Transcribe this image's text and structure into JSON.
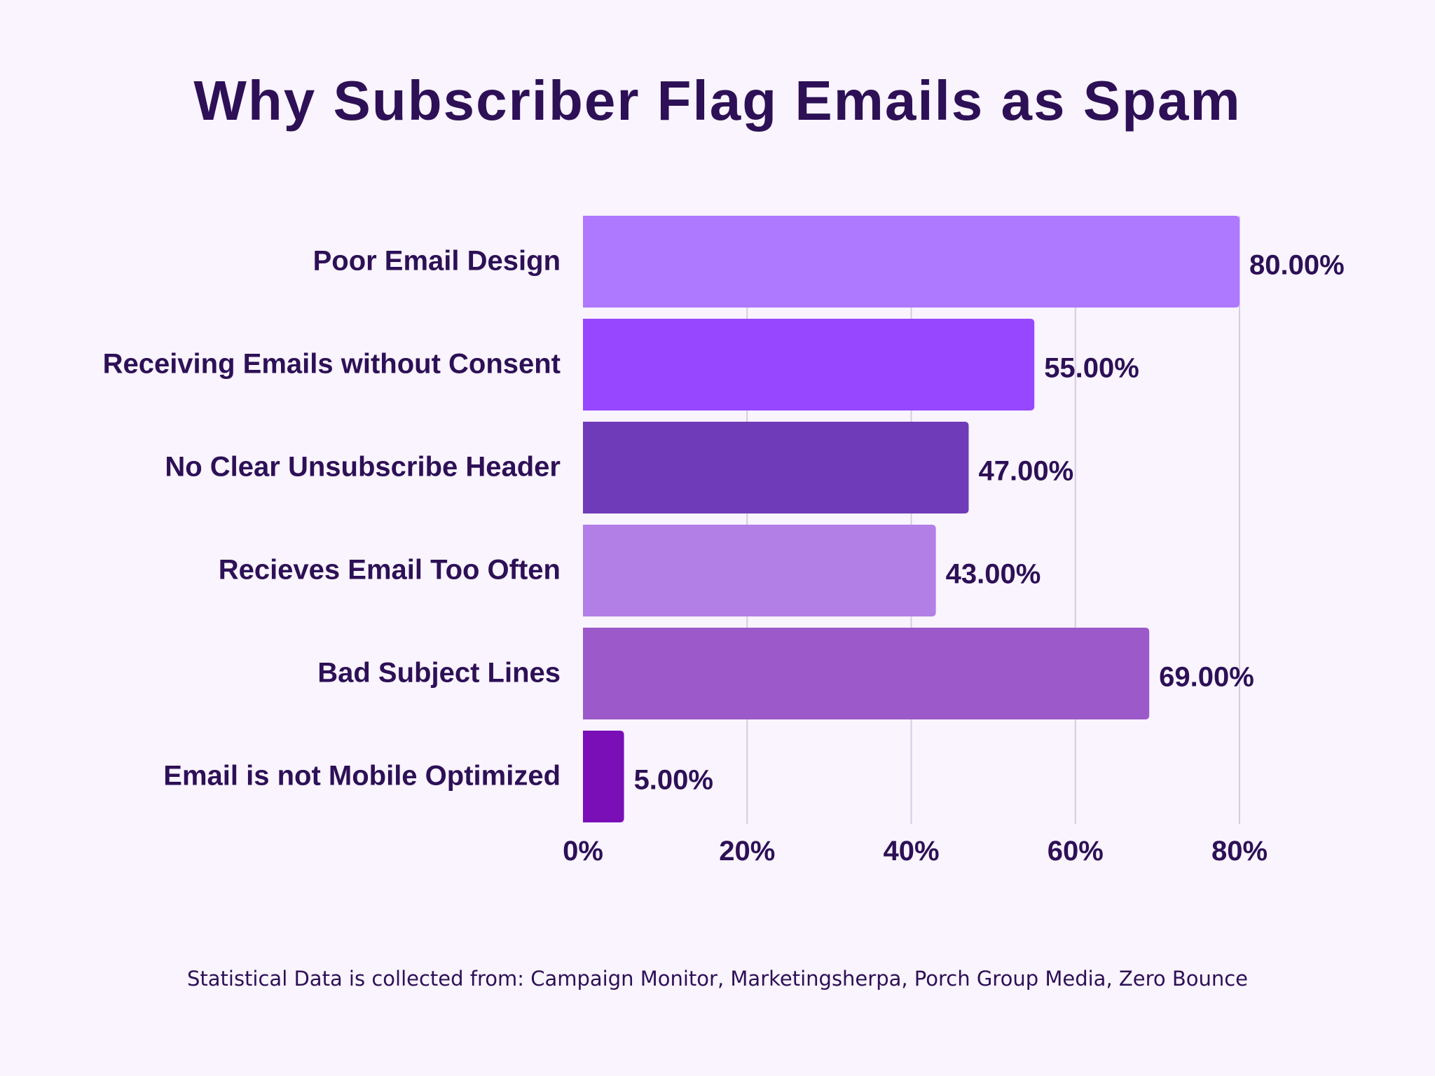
{
  "chart_data": {
    "type": "bar",
    "orientation": "horizontal",
    "title": "Why Subscriber Flag Emails as Spam",
    "categories": [
      "Poor Email Design",
      "Receiving Emails without Consent",
      "No Clear Unsubscribe Header",
      "Recieves Email Too Often",
      "Bad Subject Lines",
      "Email is not Mobile Optimized"
    ],
    "values": [
      80,
      55,
      47,
      43,
      69,
      5
    ],
    "value_labels": [
      "80.00%",
      "55.00%",
      "47.00%",
      "43.00%",
      "69.00%",
      "5.00%"
    ],
    "bar_colors": [
      "#AE78FF",
      "#9747FF",
      "#6F3BB8",
      "#B27FE6",
      "#9B59C9",
      "#7A0FB8"
    ],
    "xlim": [
      0,
      80
    ],
    "x_ticks": [
      0,
      20,
      40,
      60,
      80
    ],
    "x_tick_labels": [
      "0%",
      "20%",
      "40%",
      "60%",
      "80%"
    ],
    "xlabel": "",
    "ylabel": "",
    "grid": "vertical",
    "legend": "none"
  },
  "footer": "Statistical Data is collected from:  Campaign Monitor, Marketingsherpa, Porch Group Media, Zero Bounce",
  "colors": {
    "background": "#F9F4FD",
    "text": "#2D1056",
    "grid": "#D6CCE0"
  }
}
